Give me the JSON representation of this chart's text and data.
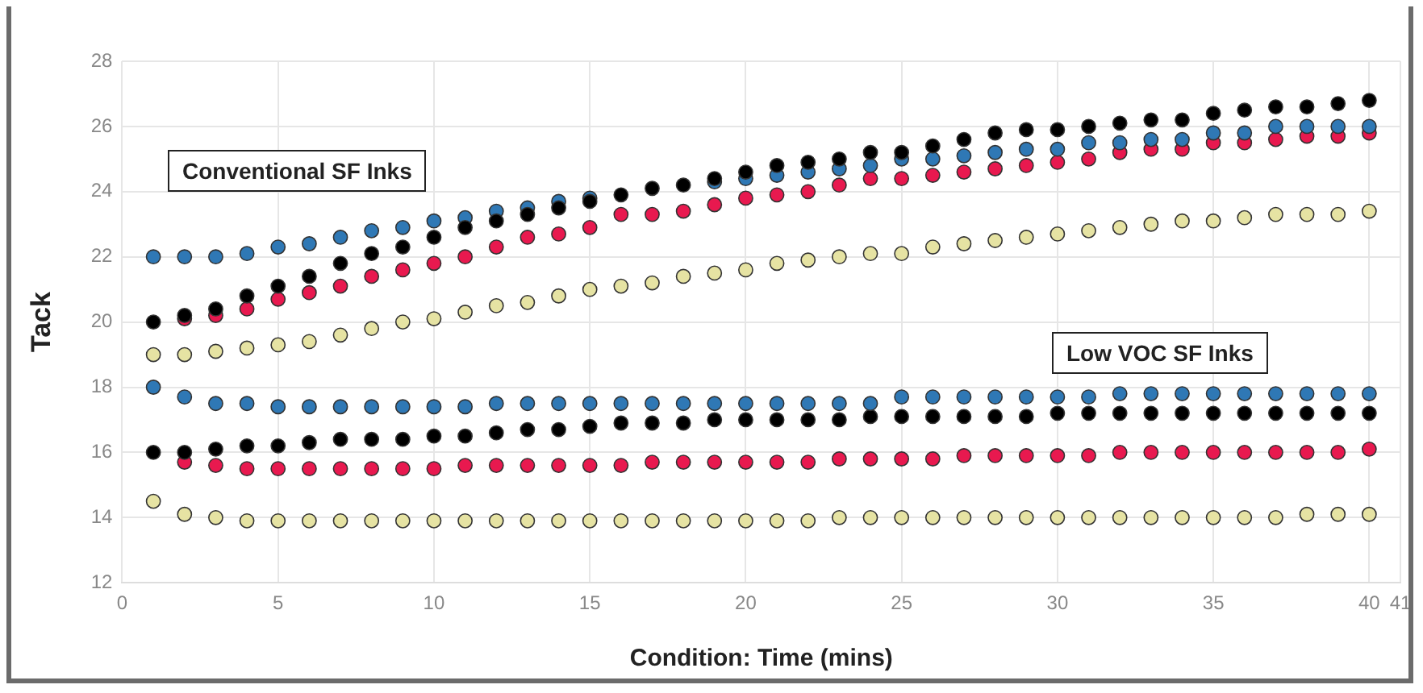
{
  "chart_data": {
    "type": "scatter",
    "xlabel": "Condition: Time (mins)",
    "ylabel": "Tack",
    "annotations": [
      "Conventional SF Inks",
      "Low VOC SF Inks"
    ],
    "x": [
      1,
      2,
      3,
      4,
      5,
      6,
      7,
      8,
      9,
      10,
      11,
      12,
      13,
      14,
      15,
      16,
      17,
      18,
      19,
      20,
      21,
      22,
      23,
      24,
      25,
      26,
      27,
      28,
      29,
      30,
      31,
      32,
      33,
      34,
      35,
      36,
      37,
      38,
      39,
      40
    ],
    "xlim": [
      0,
      41
    ],
    "xticks": [
      0,
      5,
      10,
      15,
      20,
      25,
      30,
      35,
      40,
      41
    ],
    "ylim": [
      12,
      28
    ],
    "yticks": [
      12,
      14,
      16,
      18,
      20,
      22,
      24,
      26,
      28
    ],
    "grid": true,
    "legend": false,
    "marker": "circle",
    "series": [
      {
        "color": "#000000",
        "values": [
          20.0,
          20.2,
          20.4,
          20.8,
          21.1,
          21.4,
          21.8,
          22.1,
          22.3,
          22.6,
          22.9,
          23.1,
          23.3,
          23.5,
          23.7,
          23.9,
          24.1,
          24.2,
          24.4,
          24.6,
          24.8,
          24.9,
          25.0,
          25.2,
          25.2,
          25.4,
          25.6,
          25.8,
          25.9,
          25.9,
          26.0,
          26.1,
          26.2,
          26.2,
          26.4,
          26.5,
          26.6,
          26.6,
          26.7,
          26.8
        ]
      },
      {
        "color": "#2f78b5",
        "values": [
          22.0,
          22.0,
          22.0,
          22.1,
          22.3,
          22.4,
          22.6,
          22.8,
          22.9,
          23.1,
          23.2,
          23.4,
          23.5,
          23.7,
          23.8,
          null,
          null,
          null,
          24.3,
          24.4,
          24.5,
          24.6,
          24.7,
          24.8,
          25.0,
          25.0,
          25.1,
          25.2,
          25.3,
          25.3,
          25.5,
          25.5,
          25.6,
          25.6,
          25.8,
          25.8,
          26.0,
          26.0,
          26.0,
          26.0
        ]
      },
      {
        "color": "#e8194f",
        "values": [
          null,
          20.1,
          20.2,
          20.4,
          20.7,
          20.9,
          21.1,
          21.4,
          21.6,
          21.8,
          22.0,
          22.3,
          22.6,
          22.7,
          22.9,
          23.3,
          23.3,
          23.4,
          23.6,
          23.8,
          23.9,
          24.0,
          24.2,
          24.4,
          24.4,
          24.5,
          24.6,
          24.7,
          24.8,
          24.9,
          25.0,
          25.2,
          25.3,
          25.3,
          25.5,
          25.5,
          25.6,
          25.7,
          25.7,
          25.8
        ]
      },
      {
        "color": "#e6e3a3",
        "values": [
          19.0,
          19.0,
          19.1,
          19.2,
          19.3,
          19.4,
          19.6,
          19.8,
          20.0,
          20.1,
          20.3,
          20.5,
          20.6,
          20.8,
          21.0,
          21.1,
          21.2,
          21.4,
          21.5,
          21.6,
          21.8,
          21.9,
          22.0,
          22.1,
          22.1,
          22.3,
          22.4,
          22.5,
          22.6,
          22.7,
          22.8,
          22.9,
          23.0,
          23.1,
          23.1,
          23.2,
          23.3,
          23.3,
          23.3,
          23.4
        ]
      },
      {
        "color": "#2f78b5",
        "values": [
          18.0,
          17.7,
          17.5,
          17.5,
          17.4,
          17.4,
          17.4,
          17.4,
          17.4,
          17.4,
          17.4,
          17.5,
          17.5,
          17.5,
          17.5,
          17.5,
          17.5,
          17.5,
          17.5,
          17.5,
          17.5,
          17.5,
          17.5,
          17.5,
          17.7,
          17.7,
          17.7,
          17.7,
          17.7,
          17.7,
          17.7,
          17.8,
          17.8,
          17.8,
          17.8,
          17.8,
          17.8,
          17.8,
          17.8,
          17.8
        ]
      },
      {
        "color": "#000000",
        "values": [
          16.0,
          16.0,
          16.1,
          16.2,
          16.2,
          16.3,
          16.4,
          16.4,
          16.4,
          16.5,
          16.5,
          16.6,
          16.7,
          16.7,
          16.8,
          16.9,
          16.9,
          16.9,
          17.0,
          17.0,
          17.0,
          17.0,
          17.0,
          17.1,
          17.1,
          17.1,
          17.1,
          17.1,
          17.1,
          17.2,
          17.2,
          17.2,
          17.2,
          17.2,
          17.2,
          17.2,
          17.2,
          17.2,
          17.2,
          17.2
        ]
      },
      {
        "color": "#e8194f",
        "values": [
          null,
          15.7,
          15.6,
          15.5,
          15.5,
          15.5,
          15.5,
          15.5,
          15.5,
          15.5,
          15.6,
          15.6,
          15.6,
          15.6,
          15.6,
          15.6,
          15.7,
          15.7,
          15.7,
          15.7,
          15.7,
          15.7,
          15.8,
          15.8,
          15.8,
          15.8,
          15.9,
          15.9,
          15.9,
          15.9,
          15.9,
          16.0,
          16.0,
          16.0,
          16.0,
          16.0,
          16.0,
          16.0,
          16.0,
          16.1
        ]
      },
      {
        "color": "#e6e3a3",
        "values": [
          14.5,
          14.1,
          14.0,
          13.9,
          13.9,
          13.9,
          13.9,
          13.9,
          13.9,
          13.9,
          13.9,
          13.9,
          13.9,
          13.9,
          13.9,
          13.9,
          13.9,
          13.9,
          13.9,
          13.9,
          13.9,
          13.9,
          14.0,
          14.0,
          14.0,
          14.0,
          14.0,
          14.0,
          14.0,
          14.0,
          14.0,
          14.0,
          14.0,
          14.0,
          14.0,
          14.0,
          14.0,
          14.1,
          14.1,
          14.1
        ]
      }
    ]
  }
}
